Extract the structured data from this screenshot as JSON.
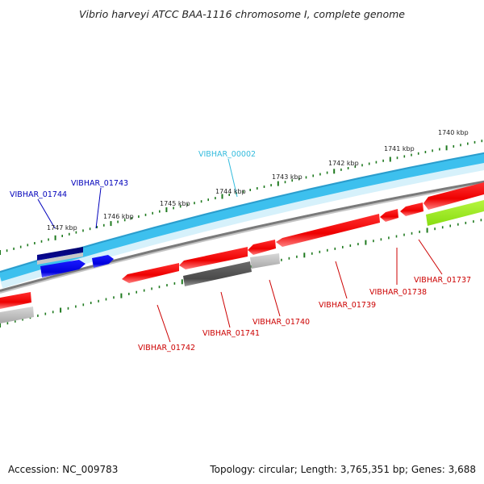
{
  "title": "Vibrio harveyi ATCC BAA-1116 chromosome I, complete genome",
  "footer": {
    "accession": "Accession: NC_009783",
    "summary": "Topology: circular; Length: 3,765,351 bp; Genes: 3,688"
  },
  "colors": {
    "backbone": "#33bbee",
    "backbone_light": "#bfe8f8",
    "tick": "#1f7a1f",
    "forward_gene": "#0a0aee",
    "forward_gene_dark": "#00007a",
    "reverse_gene": "#ee1111",
    "grey_gene": "#555555",
    "grey_gene_light": "#b8b8b8",
    "yellowgreen_gene": "#99ee22",
    "label_blue": "#0000bb",
    "label_cyan": "#33bbdd",
    "label_red": "#cc0000"
  },
  "scale": {
    "labels": [
      "1740 kbp",
      "1741 kbp",
      "1742 kbp",
      "1743 kbp",
      "1744 kbp",
      "1745 kbp",
      "1746 kbp",
      "1747 kbp"
    ]
  },
  "genes": {
    "labels": [
      {
        "text": "VIBHAR_00002",
        "color": "label_cyan"
      },
      {
        "text": "VIBHAR_01743",
        "color": "label_blue"
      },
      {
        "text": "VIBHAR_01744",
        "color": "label_blue"
      },
      {
        "text": "VIBHAR_01742",
        "color": "label_red"
      },
      {
        "text": "VIBHAR_01741",
        "color": "label_red"
      },
      {
        "text": "VIBHAR_01740",
        "color": "label_red"
      },
      {
        "text": "VIBHAR_01739",
        "color": "label_red"
      },
      {
        "text": "VIBHAR_01738",
        "color": "label_red"
      },
      {
        "text": "VIBHAR_01737",
        "color": "label_red"
      }
    ]
  }
}
